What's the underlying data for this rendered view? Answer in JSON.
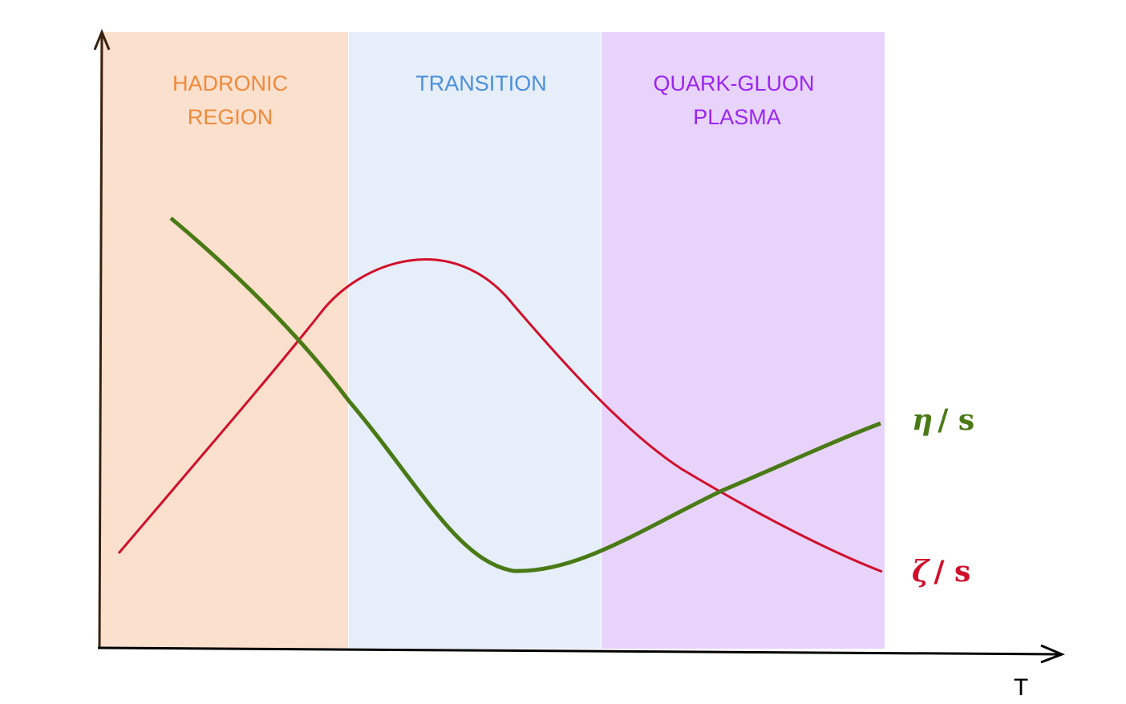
{
  "regions": [
    {
      "id": "hadronic",
      "label_line1": "HADRONIC",
      "label_line2": "REGION",
      "fill_color": "#fbe0cd",
      "text_color": "#f08a3b"
    },
    {
      "id": "transition",
      "label_line1": "TRANSITION",
      "label_line2": "",
      "fill_color": "#e6eef9",
      "text_color": "#4b8fdc"
    },
    {
      "id": "qgp",
      "label_line1": "QUARK-GLUON",
      "label_line2": "PLASMA",
      "fill_color": "#e8d3fb",
      "text_color": "#9a25f1"
    }
  ],
  "curves": {
    "eta_s": {
      "label_symbol": "η",
      "label_rest": "/ s",
      "color": "#4a7a16"
    },
    "zeta_s": {
      "label_symbol": "ζ",
      "label_rest": "/ s",
      "color": "#d20f2b"
    }
  },
  "axes": {
    "x_label": "T",
    "axis_color": "#000000",
    "y_axis_color": "#3a2210"
  }
}
